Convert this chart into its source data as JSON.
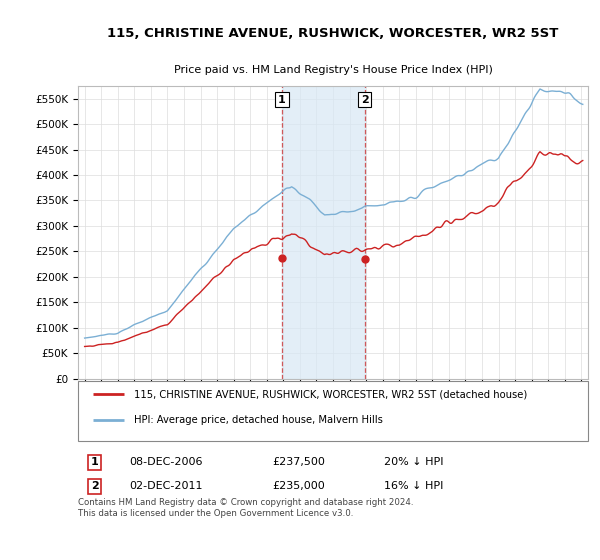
{
  "title": "115, CHRISTINE AVENUE, RUSHWICK, WORCESTER, WR2 5ST",
  "subtitle": "Price paid vs. HM Land Registry's House Price Index (HPI)",
  "legend_line1": "115, CHRISTINE AVENUE, RUSHWICK, WORCESTER, WR2 5ST (detached house)",
  "legend_line2": "HPI: Average price, detached house, Malvern Hills",
  "annotation1_date": "08-DEC-2006",
  "annotation1_price": "£237,500",
  "annotation1_hpi": "20% ↓ HPI",
  "annotation1_year": 2006.92,
  "annotation1_value": 237500,
  "annotation2_date": "02-DEC-2011",
  "annotation2_price": "£235,000",
  "annotation2_hpi": "16% ↓ HPI",
  "annotation2_year": 2011.92,
  "annotation2_value": 235000,
  "hpi_color": "#7BAFD4",
  "price_color": "#CC2222",
  "highlight_color": "#D8E8F5",
  "highlight_alpha": 0.7,
  "ylim": [
    0,
    575000
  ],
  "yticks": [
    0,
    50000,
    100000,
    150000,
    200000,
    250000,
    300000,
    350000,
    400000,
    450000,
    500000,
    550000
  ],
  "ytick_labels": [
    "£0",
    "£50K",
    "£100K",
    "£150K",
    "£200K",
    "£250K",
    "£300K",
    "£350K",
    "£400K",
    "£450K",
    "£500K",
    "£550K"
  ],
  "xlim_start": 1994.6,
  "xlim_end": 2025.4,
  "footer": "Contains HM Land Registry data © Crown copyright and database right 2024.\nThis data is licensed under the Open Government Licence v3.0.",
  "background_color": "#FFFFFF",
  "grid_color": "#DDDDDD"
}
